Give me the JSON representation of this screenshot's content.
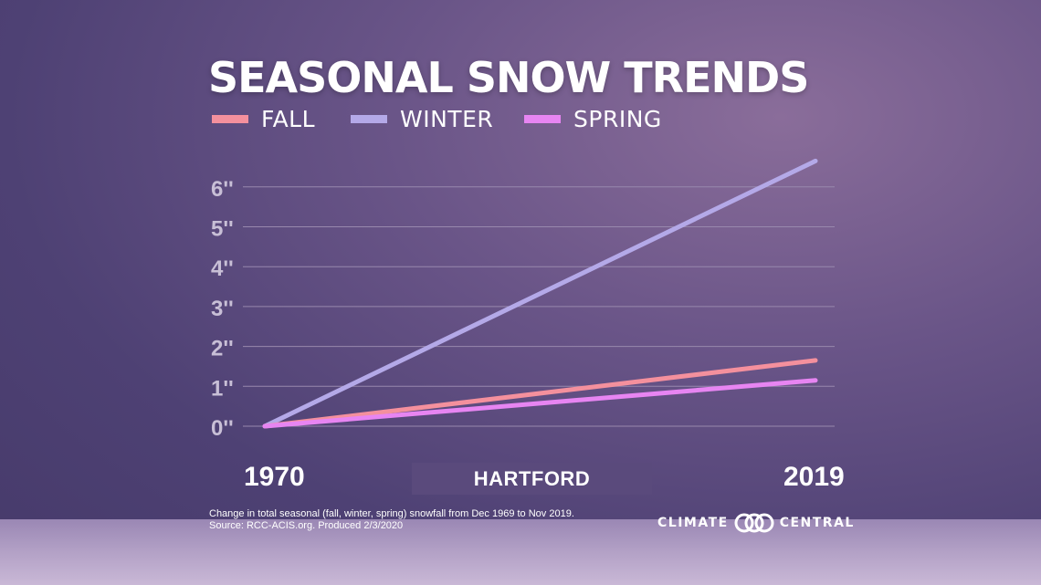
{
  "title": "SEASONAL SNOW TRENDS",
  "location": "HARTFORD",
  "footnote": {
    "line1": "Change in total seasonal (fall, winter, spring) snowfall from Dec 1969 to Nov 2019.",
    "line2": "Source: RCC-ACIS.org. Produced 2/3/2020"
  },
  "brand": {
    "left": "CLIMATE",
    "right": "CENTRAL",
    "logo_icon": "interlocking-circles-icon"
  },
  "colors": {
    "fall": "#f4909d",
    "winter": "#b4a9e8",
    "spring": "#e785f2",
    "gridline": "#9888ad"
  },
  "chart_data": {
    "type": "line",
    "title": "SEASONAL SNOW TRENDS",
    "x": [
      1970,
      2019
    ],
    "x_tick_labels": [
      "1970",
      "2019"
    ],
    "y_ticks": [
      0,
      1,
      2,
      3,
      4,
      5,
      6
    ],
    "y_tick_labels": [
      "0''",
      "1''",
      "2''",
      "3''",
      "4''",
      "5''",
      "6''"
    ],
    "ylim": [
      0,
      6.8
    ],
    "grid": true,
    "legend_placement": "top",
    "series": [
      {
        "name": "FALL",
        "color": "#f4909d",
        "values": [
          0,
          1.65
        ]
      },
      {
        "name": "WINTER",
        "color": "#b4a9e8",
        "values": [
          0,
          6.65
        ]
      },
      {
        "name": "SPRING",
        "color": "#e785f2",
        "values": [
          0,
          1.15
        ]
      }
    ]
  }
}
